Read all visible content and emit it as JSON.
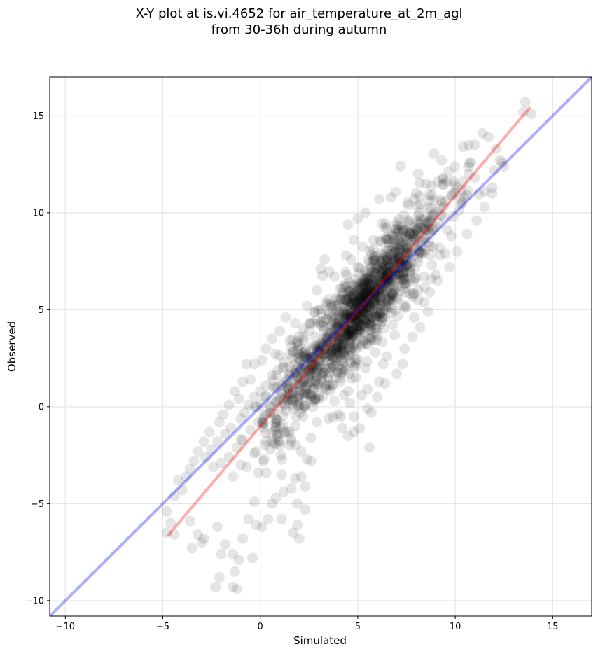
{
  "chart_data": {
    "type": "scatter",
    "title_line1": "X-Y plot at is.vi.4652 for air_temperature_at_2m_agl",
    "title_line2": "from 30-36h during autumn",
    "xlabel": "Simulated",
    "ylabel": "Observed",
    "xlim": [
      -10.8,
      17
    ],
    "ylim": [
      -10.8,
      17
    ],
    "xticks": [
      -10,
      -5,
      0,
      5,
      10,
      15
    ],
    "yticks": [
      -10,
      -5,
      0,
      5,
      10,
      15
    ],
    "xtick_labels": [
      "−10",
      "−5",
      "0",
      "5",
      "10",
      "15"
    ],
    "ytick_labels": [
      "−10",
      "−5",
      "0",
      "5",
      "10",
      "15"
    ],
    "grid": true,
    "point_color": "#000000",
    "point_opacity": 0.1,
    "approx_point_count": 1500,
    "lines": [
      {
        "role": "one-to-one",
        "color": "#0000ff",
        "x": [
          -10.8,
          17
        ],
        "y": [
          -10.8,
          17
        ]
      },
      {
        "role": "regression",
        "color": "#ff0000",
        "x": [
          -4.7,
          13.8
        ],
        "y": [
          -6.6,
          15.4
        ]
      }
    ],
    "points": [
      [
        13.6,
        15.7
      ],
      [
        13.5,
        15.2
      ],
      [
        13.9,
        15.1
      ],
      [
        11.4,
        14.1
      ],
      [
        11.7,
        13.9
      ],
      [
        11.0,
        13.5
      ],
      [
        12.1,
        13.3
      ],
      [
        10.4,
        13.4
      ],
      [
        12.3,
        12.7
      ],
      [
        12.5,
        12.4
      ],
      [
        12.0,
        12.2
      ],
      [
        9.3,
        12.7
      ],
      [
        7.2,
        12.4
      ],
      [
        8.1,
        12.0
      ],
      [
        10.8,
        12.6
      ],
      [
        11.9,
        11.3
      ],
      [
        11.5,
        11.1
      ],
      [
        10.6,
        10.9
      ],
      [
        6.7,
        10.8
      ],
      [
        6.1,
        10.7
      ],
      [
        9.4,
        10.3
      ],
      [
        10.2,
        10.1
      ],
      [
        9.8,
        8.8
      ],
      [
        9.6,
        9.1
      ],
      [
        9.2,
        8.2
      ],
      [
        9.0,
        6.8
      ],
      [
        8.4,
        6.7
      ],
      [
        8.8,
        7.3
      ],
      [
        7.9,
        5.8
      ],
      [
        7.4,
        5.1
      ],
      [
        8.1,
        5.5
      ],
      [
        5.4,
        10.0
      ],
      [
        5.0,
        9.7
      ],
      [
        4.5,
        9.4
      ],
      [
        4.8,
        8.6
      ],
      [
        4.4,
        7.8
      ],
      [
        3.3,
        7.6
      ],
      [
        3.1,
        7.1
      ],
      [
        2.9,
        6.0
      ],
      [
        2.4,
        5.2
      ],
      [
        1.8,
        4.3
      ],
      [
        1.3,
        4.6
      ],
      [
        1.0,
        3.9
      ],
      [
        0.6,
        3.5
      ],
      [
        1.6,
        3.1
      ],
      [
        0.3,
        3.0
      ],
      [
        0.1,
        2.4
      ],
      [
        -0.3,
        2.2
      ],
      [
        -0.7,
        2.2
      ],
      [
        -0.5,
        1.4
      ],
      [
        -0.9,
        1.3
      ],
      [
        -1.3,
        0.8
      ],
      [
        -1.1,
        0.4
      ],
      [
        -1.6,
        0.1
      ],
      [
        -1.9,
        -0.4
      ],
      [
        -2.1,
        -0.8
      ],
      [
        -2.6,
        -1.3
      ],
      [
        -2.9,
        -1.8
      ],
      [
        -3.2,
        -2.3
      ],
      [
        -3.4,
        -2.8
      ],
      [
        -3.6,
        -3.2
      ],
      [
        -3.8,
        -3.6
      ],
      [
        -4.2,
        -3.8
      ],
      [
        -4.0,
        -4.3
      ],
      [
        -4.4,
        -4.6
      ],
      [
        -4.8,
        -5.4
      ],
      [
        -4.6,
        -6.0
      ],
      [
        -4.4,
        -6.6
      ],
      [
        -4.8,
        -6.5
      ],
      [
        -3.6,
        -5.9
      ],
      [
        -3.2,
        -6.6
      ],
      [
        -3.0,
        -7.0
      ],
      [
        -2.9,
        -6.8
      ],
      [
        -3.5,
        -7.3
      ],
      [
        -2.2,
        -6.2
      ],
      [
        -1.8,
        -7.1
      ],
      [
        -2.0,
        -7.6
      ],
      [
        -1.4,
        -7.6
      ],
      [
        -1.1,
        -7.9
      ],
      [
        -0.9,
        -6.8
      ],
      [
        -0.4,
        -7.8
      ],
      [
        -2.1,
        -8.8
      ],
      [
        -2.3,
        -9.3
      ],
      [
        -1.4,
        -9.3
      ],
      [
        -1.2,
        -9.4
      ],
      [
        -1.3,
        -8.5
      ],
      [
        -0.6,
        -5.8
      ],
      [
        -0.2,
        -6.1
      ],
      [
        0.1,
        -6.2
      ],
      [
        0.4,
        -5.8
      ],
      [
        0.6,
        -5.0
      ],
      [
        -0.3,
        -4.9
      ],
      [
        0.8,
        -4.7
      ],
      [
        1.2,
        -4.4
      ],
      [
        1.6,
        -4.2
      ],
      [
        1.1,
        -3.5
      ],
      [
        1.8,
        -3.7
      ],
      [
        2.1,
        -3.6
      ],
      [
        2.3,
        -4.1
      ],
      [
        1.9,
        -5.0
      ],
      [
        2.3,
        -5.3
      ],
      [
        1.7,
        -6.5
      ],
      [
        1.9,
        -6.1
      ],
      [
        2.0,
        -6.8
      ],
      [
        1.1,
        -5.8
      ],
      [
        2.6,
        -2.8
      ],
      [
        2.1,
        -2.3
      ],
      [
        2.4,
        -2.7
      ],
      [
        1.5,
        -2.0
      ],
      [
        1.4,
        -1.3
      ],
      [
        2.6,
        -1.6
      ],
      [
        2.9,
        -0.8
      ],
      [
        3.5,
        -0.6
      ],
      [
        4.2,
        -1.1
      ],
      [
        4.5,
        -1.5
      ],
      [
        4.8,
        -1.3
      ],
      [
        5.1,
        -1.1
      ],
      [
        5.6,
        -2.1
      ],
      [
        4.8,
        -0.5
      ],
      [
        5.5,
        -0.1
      ],
      [
        5.2,
        0.6
      ],
      [
        5.5,
        0.9
      ],
      [
        6.1,
        1.3
      ],
      [
        6.4,
        1.2
      ],
      [
        7.0,
        1.7
      ],
      [
        7.3,
        2.2
      ],
      [
        6.5,
        2.6
      ],
      [
        7.4,
        3.0
      ],
      [
        6.9,
        3.7
      ],
      [
        8.2,
        4.1
      ],
      [
        8.6,
        4.9
      ],
      [
        8.4,
        5.4
      ],
      [
        8.1,
        6.0
      ],
      [
        7.5,
        6.4
      ],
      [
        9.5,
        7.9
      ],
      [
        9.9,
        9.8
      ],
      [
        10.3,
        10.7
      ],
      [
        11.0,
        11.8
      ],
      [
        12.4,
        12.6
      ],
      [
        8.8,
        10.9
      ],
      [
        9.1,
        11.6
      ],
      [
        8.5,
        11.5
      ],
      [
        8.0,
        11.0
      ],
      [
        7.6,
        10.4
      ],
      [
        7.0,
        9.5
      ],
      [
        6.5,
        9.2
      ],
      [
        6.2,
        8.5
      ],
      [
        6.8,
        8.8
      ],
      [
        5.8,
        8.1
      ],
      [
        4.2,
        6.1
      ],
      [
        3.8,
        6.7
      ],
      [
        3.6,
        5.3
      ],
      [
        4.0,
        4.7
      ],
      [
        3.4,
        4.5
      ],
      [
        2.8,
        4.9
      ],
      [
        2.5,
        3.9
      ],
      [
        2.2,
        3.6
      ],
      [
        1.9,
        3.1
      ],
      [
        1.5,
        2.7
      ],
      [
        1.2,
        2.3
      ],
      [
        0.9,
        1.9
      ],
      [
        0.6,
        1.6
      ],
      [
        0.3,
        1.1
      ],
      [
        0.0,
        0.8
      ],
      [
        -0.3,
        0.5
      ],
      [
        -0.6,
        0.1
      ],
      [
        -0.8,
        -0.3
      ],
      [
        -1.0,
        -0.6
      ],
      [
        -1.5,
        -1.1
      ],
      [
        -1.8,
        -1.4
      ],
      [
        -2.2,
        -1.8
      ],
      [
        -2.5,
        -2.2
      ],
      [
        -2.8,
        -2.6
      ],
      [
        -2.4,
        -3.1
      ],
      [
        -2.0,
        -2.9
      ],
      [
        -1.6,
        -2.6
      ],
      [
        -1.2,
        -2.1
      ],
      [
        -0.9,
        -1.7
      ],
      [
        -0.5,
        -1.2
      ],
      [
        -0.1,
        -0.8
      ],
      [
        0.2,
        -0.4
      ],
      [
        0.5,
        0.0
      ],
      [
        0.8,
        0.3
      ],
      [
        1.1,
        0.7
      ],
      [
        1.4,
        1.1
      ],
      [
        1.7,
        1.4
      ],
      [
        2.0,
        1.8
      ],
      [
        2.3,
        2.1
      ],
      [
        2.6,
        2.5
      ],
      [
        2.9,
        2.9
      ],
      [
        3.2,
        3.2
      ],
      [
        3.5,
        3.6
      ],
      [
        3.8,
        3.9
      ],
      [
        4.1,
        4.3
      ],
      [
        4.4,
        4.6
      ],
      [
        4.7,
        5.0
      ],
      [
        5.0,
        5.3
      ],
      [
        5.3,
        5.7
      ],
      [
        5.6,
        6.0
      ],
      [
        5.9,
        6.4
      ],
      [
        6.2,
        6.7
      ],
      [
        6.5,
        7.1
      ],
      [
        6.8,
        7.4
      ],
      [
        7.1,
        7.8
      ],
      [
        7.4,
        8.1
      ],
      [
        7.7,
        8.5
      ],
      [
        8.0,
        8.8
      ],
      [
        8.3,
        9.2
      ],
      [
        8.6,
        9.5
      ],
      [
        8.9,
        9.9
      ],
      [
        9.2,
        10.2
      ],
      [
        9.5,
        10.6
      ],
      [
        9.8,
        10.9
      ],
      [
        10.1,
        11.3
      ],
      [
        10.4,
        11.6
      ],
      [
        10.7,
        12.0
      ],
      [
        0.3,
        -3.4
      ],
      [
        -0.1,
        -3.4
      ],
      [
        0.5,
        -2.2
      ],
      [
        1.0,
        -1.8
      ],
      [
        -0.3,
        -2.4
      ],
      [
        -1.0,
        -3.0
      ],
      [
        -1.4,
        -3.6
      ],
      [
        -0.7,
        -3.1
      ],
      [
        4.0,
        -0.4
      ],
      [
        3.8,
        0.3
      ],
      [
        4.3,
        0.6
      ],
      [
        4.6,
        0.2
      ],
      [
        5.7,
        -0.3
      ],
      [
        6.0,
        0.5
      ],
      [
        6.3,
        2.2
      ],
      [
        5.9,
        2.8
      ],
      [
        5.4,
        2.0
      ],
      [
        4.9,
        1.5
      ],
      [
        4.4,
        1.9
      ],
      [
        3.9,
        1.5
      ],
      [
        3.3,
        1.0
      ],
      [
        3.0,
        0.4
      ],
      [
        2.7,
        0.0
      ],
      [
        2.2,
        -0.5
      ],
      [
        1.8,
        -1.0
      ],
      [
        7.8,
        3.6
      ],
      [
        7.9,
        4.6
      ],
      [
        8.7,
        5.9
      ],
      [
        9.1,
        6.5
      ],
      [
        9.7,
        7.2
      ],
      [
        10.1,
        8.0
      ],
      [
        10.6,
        8.9
      ],
      [
        11.1,
        9.6
      ],
      [
        11.5,
        10.3
      ],
      [
        11.9,
        11.0
      ]
    ]
  }
}
